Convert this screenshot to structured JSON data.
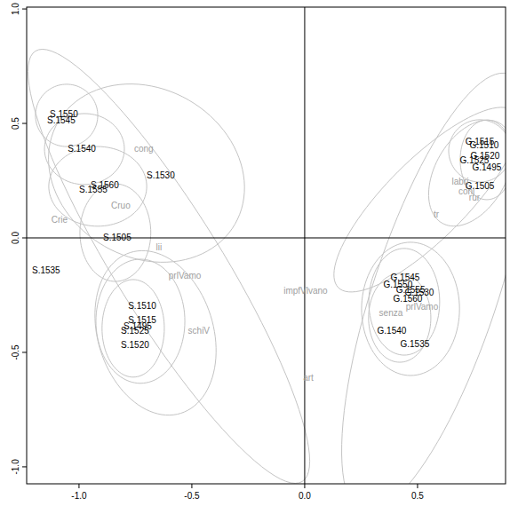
{
  "chart_data": {
    "type": "scatter",
    "xlim": [
      -1.232,
      0.89
    ],
    "ylim": [
      -1.074,
      1.008
    ],
    "xticks": [
      {
        "value": -1.0,
        "label": "-1.0"
      },
      -0.5,
      {
        "value": 0.0,
        "label": "0.0"
      },
      0.5
    ],
    "yticks": [
      {
        "value": -1.0,
        "label": "-1.0"
      },
      -0.5,
      {
        "value": 0.0,
        "label": "0.0"
      },
      0.5,
      {
        "value": 1.0,
        "label": "1.0"
      }
    ],
    "hlines": [
      0
    ],
    "vlines": [
      0
    ],
    "series": [
      {
        "color": "#000000",
        "labels": [
          "S.1550",
          "S.1545",
          "S.1540",
          "S.1530",
          "S.1560",
          "S.1555",
          "S.1505",
          "S.1535",
          "S.1510",
          "S.1515",
          "S.1495",
          "S.1525",
          "S.1520",
          "G.1515",
          "G.1510",
          "G.1520",
          "G.1525",
          "G.1495",
          "G.1505",
          "G.1545",
          "G.1550",
          "G.1555",
          "G.1530",
          "G.1560",
          "G.1540",
          "G.1535"
        ],
        "x": [
          -1.067,
          -1.079,
          -0.988,
          -0.638,
          -0.886,
          -0.937,
          -0.831,
          -1.146,
          -0.72,
          -0.72,
          -0.74,
          -0.752,
          -0.752,
          0.776,
          0.795,
          0.799,
          0.752,
          0.807,
          0.776,
          0.445,
          0.413,
          0.469,
          0.508,
          0.457,
          0.386,
          0.488
        ],
        "values": [
          0.539,
          0.512,
          0.391,
          0.275,
          0.229,
          0.213,
          0.0,
          -0.143,
          -0.295,
          -0.36,
          -0.384,
          -0.407,
          -0.469,
          0.419,
          0.407,
          0.36,
          0.341,
          0.31,
          0.225,
          -0.174,
          -0.202,
          -0.225,
          -0.24,
          -0.267,
          -0.407,
          -0.465
        ]
      },
      {
        "color": "#a0a0a0",
        "labels": [
          "cong",
          "Cruo",
          "Crie",
          "lii",
          "prlVamo",
          "schiV",
          "impfVlvano",
          "art",
          "labri",
          "conj",
          "rur",
          "tr",
          "senza",
          "prlVamo"
        ],
        "x": [
          -0.713,
          -0.815,
          -1.087,
          -0.646,
          -0.531,
          -0.469,
          0.004,
          0.016,
          0.689,
          0.717,
          0.752,
          0.583,
          0.382,
          0.52
        ],
        "values": [
          0.391,
          0.14,
          0.078,
          -0.039,
          -0.163,
          -0.407,
          -0.229,
          -0.612,
          0.248,
          0.202,
          0.178,
          0.101,
          -0.326,
          -0.302
        ]
      }
    ],
    "ellipses": [
      {
        "x": -1.055,
        "y": 0.535,
        "ux": 0.138,
        "uy": 0.0,
        "vx": 0.0,
        "vy": 0.136
      },
      {
        "x": -0.976,
        "y": 0.388,
        "ux": 0.177,
        "uy": 0.0,
        "vx": 0.0,
        "vy": 0.155
      },
      {
        "x": -0.701,
        "y": 0.283,
        "ux": 0.392,
        "uy": -0.223,
        "vx": -0.187,
        "vy": -0.319
      },
      {
        "x": -0.917,
        "y": 0.225,
        "ux": 0.217,
        "uy": 0.0,
        "vx": 0.0,
        "vy": 0.174
      },
      {
        "x": -0.602,
        "y": -0.124,
        "ux": 0.591,
        "uy": -0.94,
        "vx": 0.201,
        "vy": 0.122
      },
      {
        "x": -0.839,
        "y": 0.023,
        "ux": 0.157,
        "uy": 0.0,
        "vx": 0.0,
        "vy": 0.213
      },
      {
        "x": -0.728,
        "y": -0.364,
        "ux": 0.197,
        "uy": 0.0,
        "vx": 0.0,
        "vy": 0.271
      },
      {
        "x": -0.661,
        "y": -0.415,
        "ux": 0.112,
        "uy": -0.351,
        "vx": 0.244,
        "vy": 0.076
      },
      {
        "x": -0.76,
        "y": -0.395,
        "ux": 0.138,
        "uy": 0.0,
        "vx": 0.0,
        "vy": 0.213
      },
      {
        "x": 0.776,
        "y": 0.38,
        "ux": 0.138,
        "uy": 0.0,
        "vx": 0.0,
        "vy": 0.136
      },
      {
        "x": 0.807,
        "y": 0.341,
        "ux": 0.118,
        "uy": 0.0,
        "vx": 0.0,
        "vy": 0.174
      },
      {
        "x": 0.736,
        "y": 0.283,
        "ux": 0.128,
        "uy": 0.218,
        "vx": 0.136,
        "vy": -0.078
      },
      {
        "x": 0.539,
        "y": 0.167,
        "ux": 0.39,
        "uy": 0.384,
        "vx": 0.125,
        "vy": -0.123
      },
      {
        "x": 0.579,
        "y": -0.24,
        "ux": 0.323,
        "uy": 0.956,
        "vx": 0.261,
        "vy": -0.086
      },
      {
        "x": 0.441,
        "y": -0.279,
        "ux": 0.157,
        "uy": 0.0,
        "vx": 0.0,
        "vy": 0.233
      },
      {
        "x": 0.469,
        "y": -0.31,
        "ux": 0.217,
        "uy": 0.0,
        "vx": 0.0,
        "vy": 0.291
      },
      {
        "x": 0.421,
        "y": -0.349,
        "ux": 0.138,
        "uy": 0.0,
        "vx": 0.0,
        "vy": 0.194
      }
    ]
  }
}
